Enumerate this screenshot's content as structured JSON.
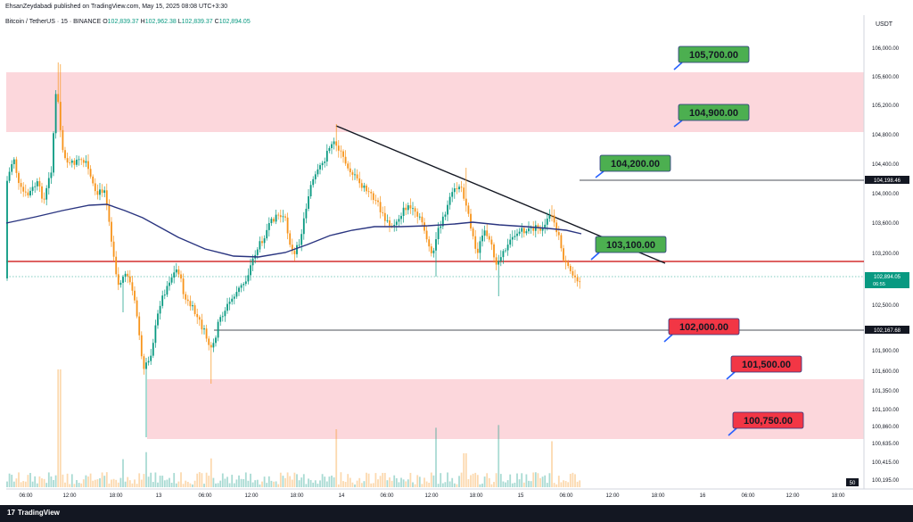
{
  "header": {
    "published_text": "EhsanZeydabadi published on TradingView.com, May 15, 2025 08:08 UTC+3:30",
    "symbol": "Bitcoin / TetherUS · 15 · BINANCE",
    "ohlc": [
      {
        "k": "O",
        "v": "102,839.37"
      },
      {
        "k": "H",
        "v": "102,962.38"
      },
      {
        "k": "L",
        "v": "102,839.37"
      },
      {
        "k": "C",
        "v": "102,894.05"
      }
    ],
    "currency": "USDT"
  },
  "footer": {
    "logo_mark": "17",
    "logo_text": "TradingView"
  },
  "colors": {
    "up": "#089981",
    "down": "#f7931a",
    "zone": "#fcd7dc",
    "ma": "#2a3580",
    "label_green": "#4caf50",
    "label_red": "#f23645",
    "arrow": "#2962ff",
    "support_line": "#d32f2f"
  },
  "chart_data": {
    "type": "candlestick",
    "y_ticks": [
      "106,000.00",
      "105,600.00",
      "105,200.00",
      "104,800.00",
      "104,400.00",
      "104,000.00",
      "103,600.00",
      "103,200.00",
      "102,500.00",
      "102,100.00",
      "101,900.00",
      "101,600.00",
      "101,350.00",
      "101,100.00",
      "100,860.00",
      "100,635.00",
      "100,415.00",
      "100,195.00"
    ],
    "x_ticks": [
      "06:00",
      "12:00",
      "18:00",
      "13",
      "06:00",
      "12:00",
      "18:00",
      "14",
      "06:00",
      "12:00",
      "18:00",
      "15",
      "06:00",
      "12:00",
      "18:00",
      "16",
      "06:00",
      "12:00",
      "18:00"
    ],
    "price_tags": [
      {
        "text": "104,198.46",
        "style": "dark"
      },
      {
        "text": "102,894.05",
        "sub": "06:55",
        "style": "current"
      },
      {
        "text": "102,167.68",
        "style": "dark"
      }
    ],
    "target_labels": [
      {
        "text": "105,700.00",
        "kind": "green"
      },
      {
        "text": "104,900.00",
        "kind": "green"
      },
      {
        "text": "104,200.00",
        "kind": "green"
      },
      {
        "text": "103,100.00",
        "kind": "green"
      },
      {
        "text": "102,000.00",
        "kind": "red"
      },
      {
        "text": "101,500.00",
        "kind": "red"
      },
      {
        "text": "100,750.00",
        "kind": "red"
      }
    ],
    "volume_axis_label": "50"
  }
}
